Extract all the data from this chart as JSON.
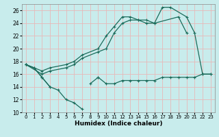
{
  "xlabel": "Humidex (Indice chaleur)",
  "bg_color": "#c8ecec",
  "grid_color": "#e8b8b8",
  "line_color": "#1a6b5a",
  "xlim": [
    -0.5,
    23.5
  ],
  "ylim": [
    10,
    27
  ],
  "xticks": [
    0,
    1,
    2,
    3,
    4,
    5,
    6,
    7,
    8,
    9,
    10,
    11,
    12,
    13,
    14,
    15,
    16,
    17,
    18,
    19,
    20,
    21,
    22,
    23
  ],
  "yticks": [
    10,
    12,
    14,
    16,
    18,
    20,
    22,
    24,
    26
  ],
  "line1_x": [
    0,
    1,
    2,
    3,
    4,
    5,
    6,
    7
  ],
  "line1_y": [
    17.5,
    17.0,
    15.5,
    14.0,
    13.5,
    12.0,
    11.5,
    10.5
  ],
  "line1b_x": [
    9
  ],
  "line1b_y": [
    15.5
  ],
  "line2_x": [
    0,
    1,
    2,
    3
  ],
  "line2_y": [
    17.5,
    17.0,
    15.5,
    14.0
  ],
  "line2b_x": [
    8,
    9,
    10,
    11,
    12,
    13,
    14,
    15,
    16,
    17,
    18,
    19,
    20,
    21,
    22,
    23
  ],
  "line2b_y": [
    14.5,
    15.5,
    14.5,
    14.5,
    15.0,
    15.0,
    15.0,
    15.0,
    15.0,
    15.5,
    15.5,
    15.5,
    15.5,
    15.5,
    16.0,
    16.0
  ],
  "line3_x": [
    0,
    2,
    3,
    5,
    6,
    7,
    9,
    10,
    11,
    12,
    13,
    14,
    15,
    16,
    19,
    20
  ],
  "line3_y": [
    17.5,
    16.0,
    16.5,
    17.0,
    17.5,
    18.5,
    19.5,
    20.0,
    22.5,
    24.0,
    24.5,
    24.5,
    24.0,
    24.0,
    25.0,
    22.5
  ],
  "line4_x": [
    0,
    2,
    3,
    5,
    6,
    7,
    9,
    10,
    11,
    12,
    13,
    14,
    15,
    16,
    17,
    18,
    20,
    21,
    22,
    23
  ],
  "line4_y": [
    17.5,
    16.5,
    17.0,
    17.5,
    18.0,
    19.0,
    20.0,
    22.0,
    23.5,
    25.0,
    25.0,
    24.5,
    24.5,
    24.0,
    26.5,
    26.5,
    25.0,
    22.5,
    16.0,
    16.0
  ]
}
